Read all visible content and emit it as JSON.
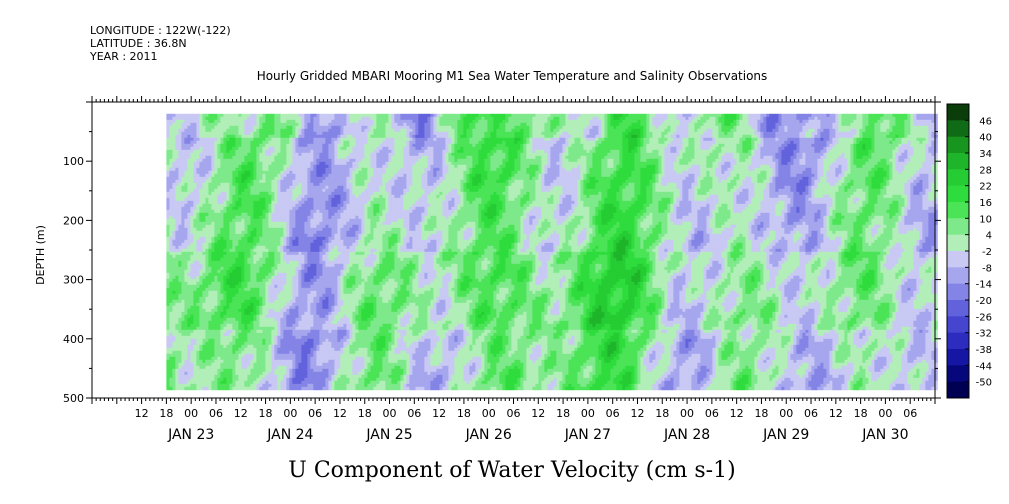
{
  "meta": {
    "longitude": "LONGITUDE : 122W(-122)",
    "latitude": "LATITUDE : 36.8N",
    "year": "YEAR : 2011"
  },
  "chart_data": {
    "type": "heatmap",
    "title": "Hourly Gridded MBARI Mooring M1 Sea Water Temperature and Salinity Observations",
    "xlabel": "U Component of Water Velocity (cm s-1)",
    "ylabel": "DEPTH (m)",
    "ylim": [
      500,
      0
    ],
    "y_ticks": [
      100,
      200,
      300,
      400,
      500
    ],
    "x_range_hours": [
      0,
      204
    ],
    "data_start_hour": 18,
    "data_end_hour": 204,
    "depth_data_range": [
      20,
      485
    ],
    "hour_tick_labels": [
      "12",
      "18",
      "00",
      "06",
      "12",
      "18",
      "00",
      "06",
      "12",
      "18",
      "00",
      "06",
      "12",
      "18",
      "00",
      "06",
      "12",
      "18",
      "00",
      "06",
      "12",
      "18",
      "00",
      "06",
      "12",
      "18",
      "00",
      "06",
      "12",
      "18",
      "00",
      "06"
    ],
    "hour_tick_offsets": [
      12,
      18,
      24,
      30,
      36,
      42,
      48,
      54,
      60,
      66,
      72,
      78,
      84,
      90,
      96,
      102,
      108,
      114,
      120,
      126,
      132,
      138,
      144,
      150,
      156,
      162,
      168,
      174,
      180,
      186,
      192,
      198
    ],
    "dates": [
      {
        "label": "JAN 23",
        "hour": 24
      },
      {
        "label": "JAN 24",
        "hour": 48
      },
      {
        "label": "JAN 25",
        "hour": 72
      },
      {
        "label": "JAN 26",
        "hour": 96
      },
      {
        "label": "JAN 27",
        "hour": 120
      },
      {
        "label": "JAN 28",
        "hour": 144
      },
      {
        "label": "JAN 29",
        "hour": 168
      },
      {
        "label": "JAN 30",
        "hour": 192
      }
    ],
    "colorbar": {
      "levels": [
        "46",
        "40",
        "34",
        "28",
        "22",
        "16",
        "10",
        "4",
        "-2",
        "-8",
        "-14",
        "-20",
        "-26",
        "-32",
        "-38",
        "-44",
        "-50"
      ],
      "colors": [
        "#0a3d0a",
        "#106b16",
        "#17951f",
        "#1eb52a",
        "#25cc33",
        "#2edc3d",
        "#4be457",
        "#7ee98a",
        "#b2efb8",
        "#c9c9f4",
        "#a6a6ee",
        "#8484e6",
        "#6262dc",
        "#4545d0",
        "#2c2cbf",
        "#1616a4",
        "#07077c",
        "#000052"
      ]
    }
  }
}
